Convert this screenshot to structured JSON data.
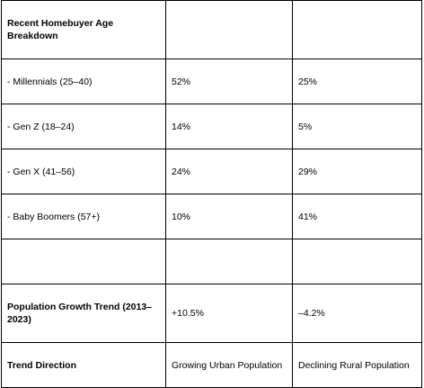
{
  "table": {
    "title": "Recent Homebuyer Age Breakdown",
    "age_rows": [
      [
        "- Millennials (25–40)",
        "52%",
        "25%"
      ],
      [
        "- Gen Z (18–24)",
        "14%",
        "5%"
      ],
      [
        "- Gen X (41–56)",
        "24%",
        "29%"
      ],
      [
        "- Baby Boomers (57+)",
        "10%",
        "41%"
      ]
    ],
    "trend_rows": [
      [
        "Population Growth Trend (2013–2023)",
        "+10.5%",
        "–4.2%"
      ],
      [
        "Trend Direction",
        "Growing Urban Population",
        "Declining Rural Population"
      ]
    ]
  }
}
